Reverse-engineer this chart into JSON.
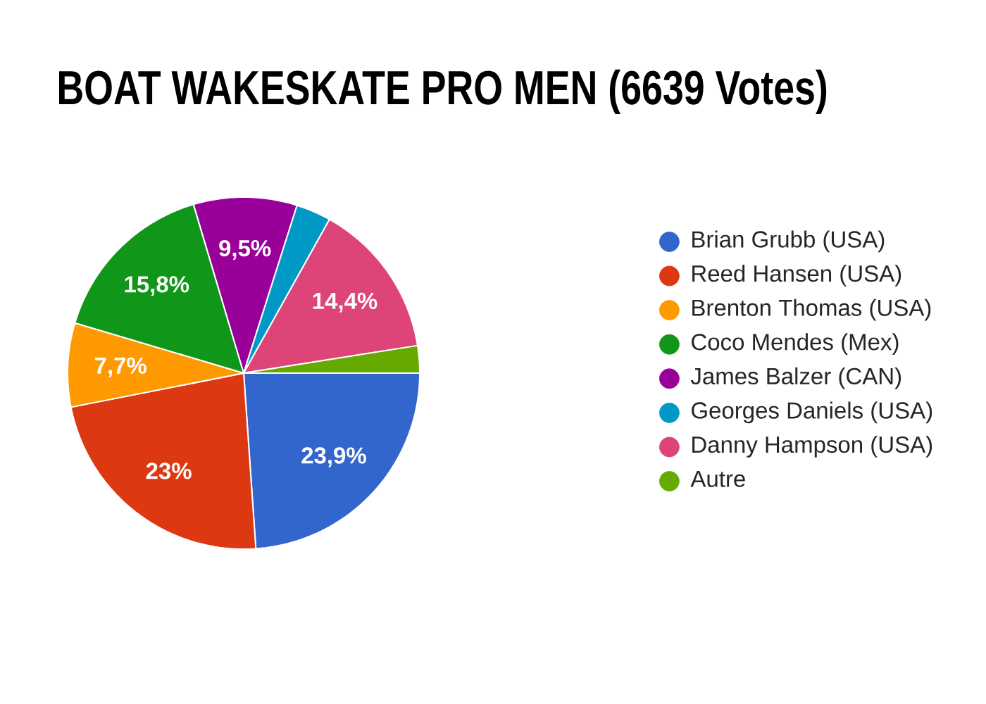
{
  "chart_data": {
    "type": "pie",
    "title": "BOAT WAKESKATE PRO MEN (6639 Votes)",
    "categories": [
      "Brian Grubb (USA)",
      "Reed Hansen (USA)",
      "Brenton Thomas (USA)",
      "Coco Mendes (Mex)",
      "James Balzer (CAN)",
      "Georges Daniels (USA)",
      "Danny Hampson (USA)",
      "Autre"
    ],
    "values": [
      23.9,
      23,
      7.7,
      15.8,
      9.5,
      3.2,
      14.4,
      2.5
    ],
    "colors": [
      "#3366cc",
      "#dc3912",
      "#ff9900",
      "#109618",
      "#990099",
      "#0099c6",
      "#dd4477",
      "#66aa00"
    ],
    "value_labels": [
      "23,9%",
      "23%",
      "7,7%",
      "15,8%",
      "9,5%",
      null,
      "14,4%",
      null
    ],
    "legend": "right"
  }
}
